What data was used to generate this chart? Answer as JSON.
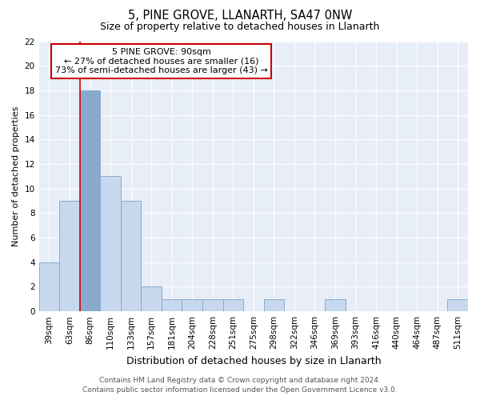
{
  "title1": "5, PINE GROVE, LLANARTH, SA47 0NW",
  "title2": "Size of property relative to detached houses in Llanarth",
  "xlabel": "Distribution of detached houses by size in Llanarth",
  "ylabel": "Number of detached properties",
  "categories": [
    "39sqm",
    "63sqm",
    "86sqm",
    "110sqm",
    "133sqm",
    "157sqm",
    "181sqm",
    "204sqm",
    "228sqm",
    "251sqm",
    "275sqm",
    "298sqm",
    "322sqm",
    "346sqm",
    "369sqm",
    "393sqm",
    "416sqm",
    "440sqm",
    "464sqm",
    "487sqm",
    "511sqm"
  ],
  "values": [
    4,
    9,
    18,
    11,
    9,
    2,
    1,
    1,
    1,
    1,
    0,
    1,
    0,
    0,
    1,
    0,
    0,
    0,
    0,
    0,
    1
  ],
  "bar_color": "#c8d8ee",
  "bar_edge_color": "#89aacc",
  "highlight_index": 2,
  "highlight_bar_color": "#89aacc",
  "vline_color": "#cc0000",
  "ylim": [
    0,
    22
  ],
  "yticks": [
    0,
    2,
    4,
    6,
    8,
    10,
    12,
    14,
    16,
    18,
    20,
    22
  ],
  "annotation_title": "5 PINE GROVE: 90sqm",
  "annotation_line1": "← 27% of detached houses are smaller (16)",
  "annotation_line2": "73% of semi-detached houses are larger (43) →",
  "annotation_box_color": "#ffffff",
  "annotation_box_edge": "#cc0000",
  "footer1": "Contains HM Land Registry data © Crown copyright and database right 2024.",
  "footer2": "Contains public sector information licensed under the Open Government Licence v3.0.",
  "fig_bg_color": "#ffffff",
  "plot_bg_color": "#e8eef8",
  "grid_color": "#ffffff",
  "title_fontsize": 10.5,
  "subtitle_fontsize": 9,
  "ylabel_fontsize": 8,
  "xlabel_fontsize": 9,
  "tick_fontsize": 7.5,
  "footer_fontsize": 6.5
}
